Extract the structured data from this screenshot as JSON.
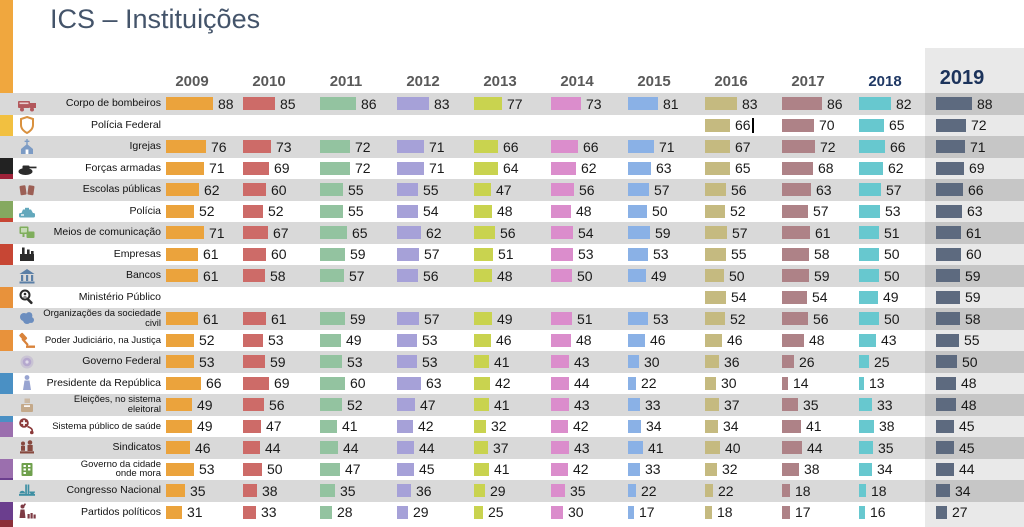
{
  "title": "ICS – Instituições",
  "highlighted_year": "2019",
  "accent_years": [
    "2018",
    "2019"
  ],
  "edit_caret": {
    "row_label": "Polícia Federal",
    "year": "2016"
  },
  "colors": {
    "title": "#44546A",
    "header_year_default": "#595959",
    "header_year_accent": "#1F3864",
    "row_stripe": "#D9D9D9",
    "value_text": "#1A1A1A",
    "highlight_column_overlay": "rgba(0,0,0,0.085)",
    "edge_stripe_segments": [
      "#F0A73E",
      "#F2C040",
      "#222222",
      "#9E2239",
      "#85A960",
      "#C74634",
      "#E8923B",
      "#4A90C4",
      "#9B6FAE",
      "#6B3E8E",
      "#8C2F39"
    ]
  },
  "chart_data": {
    "type": "bar",
    "title": "ICS – Instituições",
    "orientation": "horizontal mini-bars arranged as year columns (table-chart)",
    "value_range": [
      0,
      100
    ],
    "years": [
      "2009",
      "2010",
      "2011",
      "2012",
      "2013",
      "2014",
      "2015",
      "2016",
      "2017",
      "2018",
      "2019"
    ],
    "year_colors": [
      "#EBA33C",
      "#CD6B68",
      "#93C3A0",
      "#A6A1D8",
      "#C9D34F",
      "#DB8DCC",
      "#8AB1E6",
      "#C5BA80",
      "#AE8287",
      "#67C8CF",
      "#66748C"
    ],
    "series": [
      {
        "label": "Corpo de bombeiros",
        "icon": "fire-truck",
        "icon_color": "#B2575B",
        "values": [
          88,
          85,
          86,
          83,
          77,
          73,
          81,
          83,
          86,
          82,
          88
        ]
      },
      {
        "label": "Polícia Federal",
        "icon": "police-badge",
        "icon_color": "#D9913F",
        "values": [
          null,
          null,
          null,
          null,
          null,
          null,
          null,
          66,
          70,
          65,
          72
        ]
      },
      {
        "label": "Igrejas",
        "icon": "church",
        "icon_color": "#7C9BC4",
        "values": [
          76,
          73,
          72,
          71,
          66,
          66,
          71,
          67,
          72,
          66,
          71
        ]
      },
      {
        "label": "Forças armadas",
        "icon": "tank",
        "icon_color": "#2B2B2B",
        "values": [
          71,
          69,
          72,
          71,
          64,
          62,
          63,
          65,
          68,
          62,
          69
        ]
      },
      {
        "label": "Escolas públicas",
        "icon": "school-books",
        "icon_color": "#9C5F55",
        "values": [
          62,
          60,
          55,
          55,
          47,
          56,
          57,
          56,
          63,
          57,
          66
        ]
      },
      {
        "label": "Polícia",
        "icon": "police-car",
        "icon_color": "#63A8BC",
        "values": [
          52,
          52,
          55,
          54,
          48,
          48,
          50,
          52,
          57,
          53,
          63
        ]
      },
      {
        "label": "Meios de comunicação",
        "icon": "tv-monitors",
        "icon_color": "#7FAE5C",
        "values": [
          71,
          67,
          65,
          62,
          56,
          54,
          59,
          57,
          61,
          51,
          61
        ]
      },
      {
        "label": "Empresas",
        "icon": "factory",
        "icon_color": "#2B2B2B",
        "values": [
          61,
          60,
          59,
          57,
          51,
          53,
          53,
          55,
          58,
          50,
          60
        ]
      },
      {
        "label": "Bancos",
        "icon": "bank",
        "icon_color": "#5B7FA6",
        "values": [
          61,
          58,
          57,
          56,
          48,
          50,
          49,
          50,
          59,
          50,
          59
        ]
      },
      {
        "label": "Ministério Público",
        "icon": "magnifier-person",
        "icon_color": "#2B2B2B",
        "values": [
          null,
          null,
          null,
          null,
          null,
          null,
          null,
          54,
          54,
          49,
          59
        ]
      },
      {
        "label": "Organizações da sociedade\ncivil",
        "icon": "brain",
        "icon_color": "#6C8EBF",
        "values": [
          61,
          61,
          59,
          57,
          49,
          51,
          53,
          52,
          56,
          50,
          58
        ]
      },
      {
        "label": "Poder Judiciário, na Justiça",
        "icon": "gavel",
        "icon_color": "#D9833B",
        "values": [
          52,
          53,
          49,
          53,
          46,
          48,
          46,
          46,
          48,
          43,
          55
        ]
      },
      {
        "label": "Governo Federal",
        "icon": "ornate-seal",
        "icon_color": "#B5A8CE",
        "values": [
          53,
          59,
          53,
          53,
          41,
          43,
          30,
          36,
          26,
          25,
          50
        ]
      },
      {
        "label": "Presidente da República",
        "icon": "statue",
        "icon_color": "#98A4D1",
        "values": [
          66,
          69,
          60,
          63,
          42,
          44,
          22,
          30,
          14,
          13,
          48
        ]
      },
      {
        "label": "Eleições, no sistema\neleitoral",
        "icon": "ballot-box",
        "icon_color": "#C4A98A",
        "values": [
          49,
          56,
          52,
          47,
          41,
          43,
          33,
          37,
          35,
          33,
          48
        ]
      },
      {
        "label": "Sistema público de saúde",
        "icon": "stethoscope",
        "icon_color": "#8B3A3A",
        "values": [
          49,
          47,
          41,
          42,
          32,
          42,
          34,
          34,
          41,
          38,
          45
        ]
      },
      {
        "label": "Sindicatos",
        "icon": "meeting",
        "icon_color": "#87493F",
        "values": [
          46,
          44,
          44,
          44,
          37,
          43,
          41,
          40,
          44,
          35,
          45
        ]
      },
      {
        "label": "Governo da cidade\nonde mora",
        "icon": "city-hall",
        "icon_color": "#6FA04D",
        "values": [
          53,
          50,
          47,
          45,
          41,
          42,
          33,
          32,
          38,
          34,
          44
        ]
      },
      {
        "label": "Congresso Nacional",
        "icon": "congress-building",
        "icon_color": "#3E8FA3",
        "values": [
          35,
          38,
          35,
          36,
          29,
          35,
          22,
          22,
          18,
          18,
          34
        ]
      },
      {
        "label": "Partidos políticos",
        "icon": "orator-crowd",
        "icon_color": "#7E3B44",
        "values": [
          31,
          33,
          28,
          29,
          25,
          30,
          17,
          18,
          17,
          16,
          27
        ]
      }
    ]
  }
}
